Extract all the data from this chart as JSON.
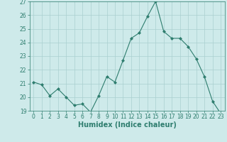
{
  "x": [
    0,
    1,
    2,
    3,
    4,
    5,
    6,
    7,
    8,
    9,
    10,
    11,
    12,
    13,
    14,
    15,
    16,
    17,
    18,
    19,
    20,
    21,
    22,
    23
  ],
  "y": [
    21.1,
    20.9,
    20.1,
    20.6,
    20.0,
    19.4,
    19.5,
    18.9,
    20.1,
    21.5,
    21.1,
    22.7,
    24.3,
    24.7,
    25.9,
    27.0,
    24.8,
    24.3,
    24.3,
    23.7,
    22.8,
    21.5,
    19.7,
    18.8
  ],
  "line_color": "#2e7d6e",
  "marker": "D",
  "marker_size": 2.0,
  "bg_color": "#ceeaea",
  "grid_color": "#aacfcf",
  "xlabel": "Humidex (Indice chaleur)",
  "ylim": [
    19,
    27
  ],
  "xlim": [
    -0.5,
    23.5
  ],
  "yticks": [
    19,
    20,
    21,
    22,
    23,
    24,
    25,
    26,
    27
  ],
  "xticks": [
    0,
    1,
    2,
    3,
    4,
    5,
    6,
    7,
    8,
    9,
    10,
    11,
    12,
    13,
    14,
    15,
    16,
    17,
    18,
    19,
    20,
    21,
    22,
    23
  ],
  "tick_color": "#2e7d6e",
  "label_color": "#2e7d6e",
  "fontsize_xlabel": 7,
  "fontsize_ticks": 5.5
}
